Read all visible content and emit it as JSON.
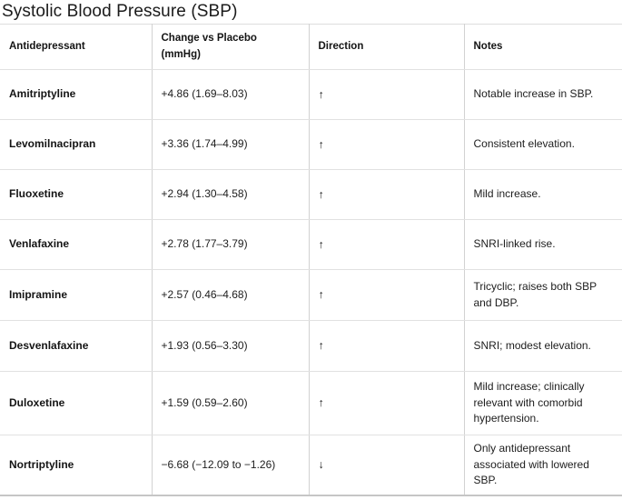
{
  "title": "Systolic Blood Pressure (SBP)",
  "table": {
    "headers": [
      "Antidepressant",
      "Change vs Placebo (mmHg)",
      "Direction",
      "Notes"
    ]
  },
  "chart_data": {
    "type": "table",
    "title": "Systolic Blood Pressure (SBP)",
    "columns": [
      "Antidepressant",
      "Change vs Placebo (mmHg)",
      "Direction",
      "Notes"
    ],
    "rows": [
      [
        "Amitriptyline",
        "+4.86 (1.69–8.03)",
        "↑",
        "Notable increase in SBP."
      ],
      [
        "Levomilnacipran",
        "+3.36 (1.74–4.99)",
        "↑",
        "Consistent elevation."
      ],
      [
        "Fluoxetine",
        "+2.94 (1.30–4.58)",
        "↑",
        "Mild increase."
      ],
      [
        "Venlafaxine",
        "+2.78 (1.77–3.79)",
        "↑",
        "SNRI-linked rise."
      ],
      [
        "Imipramine",
        "+2.57 (0.46–4.68)",
        "↑",
        "Tricyclic; raises both SBP and DBP."
      ],
      [
        "Desvenlafaxine",
        "+1.93 (0.56–3.30)",
        "↑",
        "SNRI; modest elevation."
      ],
      [
        "Duloxetine",
        "+1.59 (0.59–2.60)",
        "↑",
        "Mild increase; clinically relevant with comorbid hypertension."
      ],
      [
        "Nortriptyline",
        "−6.68 (−12.09 to −1.26)",
        "↓",
        "Only antidepressant associated with lowered SBP."
      ]
    ]
  },
  "colors": {
    "background": "#ffffff",
    "text": "#1c1c1c",
    "divider_horizontal": "#e1e1e1",
    "divider_vertical": "#d2d2d2",
    "table_bottom_border": "#c6c6c6"
  }
}
